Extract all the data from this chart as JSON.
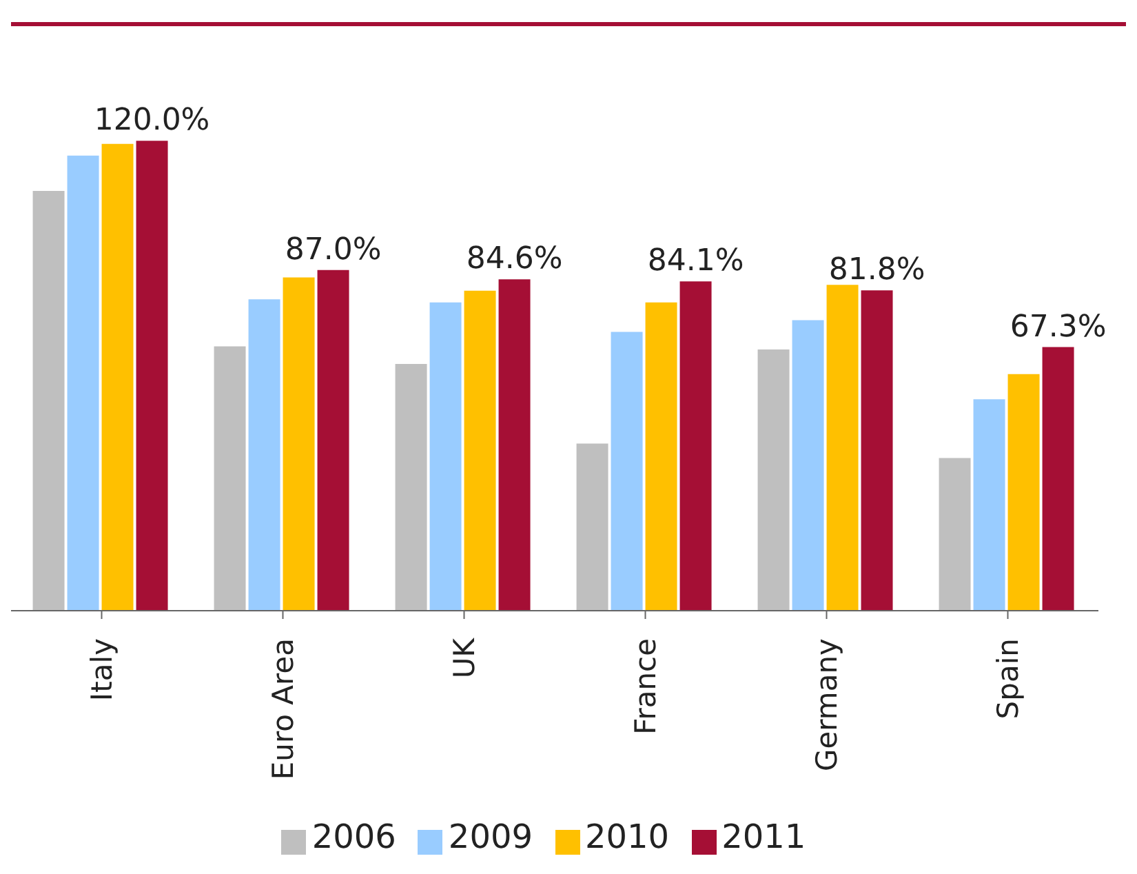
{
  "chart_data": {
    "type": "bar",
    "categories": [
      "Italy",
      "Euro Area",
      "UK",
      "France",
      "Germany",
      "Spain"
    ],
    "series": [
      {
        "name": "2006",
        "color": "#bfbfbf",
        "values": [
          107.2,
          67.5,
          63,
          42.7,
          66.7,
          39
        ]
      },
      {
        "name": "2009",
        "color": "#99ccff",
        "values": [
          116.2,
          79.5,
          78.7,
          71.2,
          74.2,
          54
        ]
      },
      {
        "name": "2010",
        "color": "#ffc000",
        "values": [
          119.2,
          85.1,
          81.7,
          78.7,
          83.2,
          60.4
        ]
      },
      {
        "name": "2011",
        "color": "#a50f35",
        "values": [
          120,
          87,
          84.6,
          84.1,
          81.8,
          67.3
        ],
        "value_labels": [
          "120.0%",
          "87.0%",
          "84.6%",
          "84.1%",
          "81.8%",
          "67.3%"
        ]
      }
    ],
    "legend": "bottom",
    "grid": false,
    "tick_labels": "x"
  }
}
